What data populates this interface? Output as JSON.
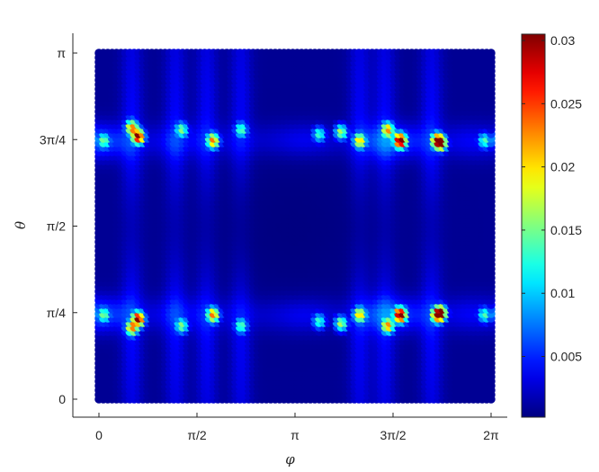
{
  "chart_data": {
    "type": "heatmap",
    "xlabel": "φ",
    "ylabel": "θ",
    "xlim": [
      0,
      6.2832
    ],
    "ylim": [
      0,
      3.1416
    ],
    "x_ticks": [
      {
        "value": 0,
        "label": "0"
      },
      {
        "value": 1.5708,
        "label": "π/2"
      },
      {
        "value": 3.1416,
        "label": "π"
      },
      {
        "value": 4.7124,
        "label": "3π/2"
      },
      {
        "value": 6.2832,
        "label": "2π"
      }
    ],
    "y_ticks": [
      {
        "value": 0,
        "label": "0"
      },
      {
        "value": 0.7854,
        "label": "π/4"
      },
      {
        "value": 1.5708,
        "label": "π/2"
      },
      {
        "value": 2.3562,
        "label": "3π/4"
      },
      {
        "value": 3.1416,
        "label": "π"
      }
    ],
    "colorbar": {
      "colormap": "jet",
      "range": [
        0.0002,
        0.0305
      ],
      "ticks": [
        {
          "value": 0.005,
          "label": "0.005"
        },
        {
          "value": 0.01,
          "label": "0.01"
        },
        {
          "value": 0.015,
          "label": "0.015"
        },
        {
          "value": 0.02,
          "label": "0.02"
        },
        {
          "value": 0.025,
          "label": "0.025"
        },
        {
          "value": 0.03,
          "label": "0.03"
        }
      ]
    },
    "grid_resolution": {
      "phi_points": 90,
      "theta_points": 78
    },
    "field": {
      "baseline": 0.0008,
      "bands": [
        {
          "theta": 2.3562,
          "width": 0.22,
          "amplitude": 0.006
        },
        {
          "theta": 0.7854,
          "width": 0.22,
          "amplitude": 0.006
        }
      ],
      "column_phis": [
        0.55,
        1.25,
        1.75,
        2.3,
        4.2,
        4.6,
        5.35
      ],
      "column_amplitude": 0.0045,
      "hotspots": [
        {
          "phi": 0.65,
          "theta": 2.4,
          "value": 0.0285
        },
        {
          "phi": 0.65,
          "theta": 0.74,
          "value": 0.0285
        },
        {
          "phi": 0.55,
          "theta": 2.48,
          "value": 0.02
        },
        {
          "phi": 0.55,
          "theta": 0.66,
          "value": 0.02
        },
        {
          "phi": 1.85,
          "theta": 2.36,
          "value": 0.021
        },
        {
          "phi": 1.85,
          "theta": 0.78,
          "value": 0.021
        },
        {
          "phi": 4.85,
          "theta": 2.36,
          "value": 0.0305
        },
        {
          "phi": 4.85,
          "theta": 0.78,
          "value": 0.0305
        },
        {
          "phi": 4.65,
          "theta": 2.46,
          "value": 0.019
        },
        {
          "phi": 4.65,
          "theta": 0.68,
          "value": 0.019
        },
        {
          "phi": 5.45,
          "theta": 2.36,
          "value": 0.029
        },
        {
          "phi": 5.45,
          "theta": 0.78,
          "value": 0.029
        },
        {
          "phi": 5.5,
          "theta": 2.34,
          "value": 0.022
        },
        {
          "phi": 5.5,
          "theta": 0.8,
          "value": 0.022
        },
        {
          "phi": 1.35,
          "theta": 2.46,
          "value": 0.013
        },
        {
          "phi": 1.35,
          "theta": 0.68,
          "value": 0.013
        },
        {
          "phi": 3.9,
          "theta": 2.44,
          "value": 0.016
        },
        {
          "phi": 3.9,
          "theta": 0.7,
          "value": 0.016
        },
        {
          "phi": 4.2,
          "theta": 2.36,
          "value": 0.018
        },
        {
          "phi": 4.2,
          "theta": 0.78,
          "value": 0.018
        },
        {
          "phi": 3.55,
          "theta": 2.42,
          "value": 0.012
        },
        {
          "phi": 3.55,
          "theta": 0.72,
          "value": 0.012
        },
        {
          "phi": 2.3,
          "theta": 2.46,
          "value": 0.012
        },
        {
          "phi": 2.3,
          "theta": 0.68,
          "value": 0.012
        },
        {
          "phi": 6.2,
          "theta": 2.36,
          "value": 0.012
        },
        {
          "phi": 6.2,
          "theta": 0.78,
          "value": 0.012
        },
        {
          "phi": 0.1,
          "theta": 2.36,
          "value": 0.012
        },
        {
          "phi": 0.1,
          "theta": 0.78,
          "value": 0.012
        }
      ]
    }
  }
}
